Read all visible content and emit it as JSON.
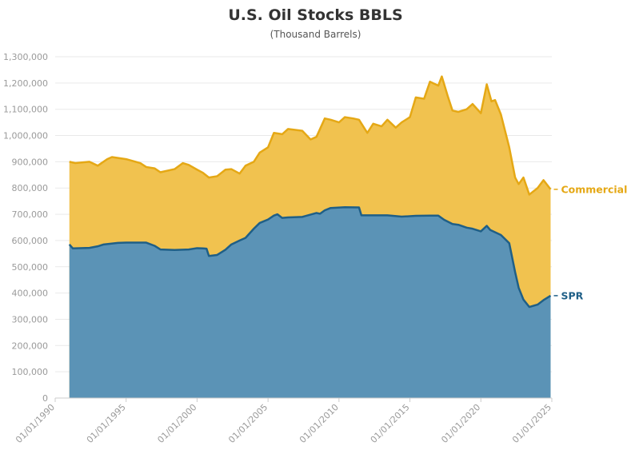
{
  "colors": {
    "commercial_fill": "#f1c24f",
    "commercial_line": "#e5a815",
    "spr_fill": "#5b93b6",
    "spr_line": "#1f5f87",
    "grid": "#e9e9e9",
    "tick_text": "#9a9a9a",
    "title_text": "#333333"
  },
  "chart_data": {
    "type": "area",
    "title": "U.S. Oil Stocks BBLS",
    "subtitle": "(Thousand Barrels)",
    "xlabel": "",
    "ylabel": "",
    "stacked": true,
    "ylim": [
      0,
      1300000
    ],
    "y_ticks": [
      "0",
      "100,000",
      "200,000",
      "300,000",
      "400,000",
      "500,000",
      "600,000",
      "700,000",
      "800,000",
      "900,000",
      "1,000,000",
      "1,100,000",
      "1,200,000",
      "1,300,000"
    ],
    "x_ticks": [
      "01/01/1990",
      "01/01/1995",
      "01/01/2000",
      "01/01/2005",
      "01/01/2010",
      "01/01/2015",
      "01/01/2020",
      "01/01/2025"
    ],
    "x_range": [
      "1990-01-01",
      "2025-01-01"
    ],
    "grid": true,
    "legend": "right-end labels",
    "series": [
      {
        "name": "SPR",
        "color": "#5b93b6",
        "points": [
          [
            "1991-01-01",
            585000
          ],
          [
            "1991-04-01",
            570000
          ],
          [
            "1992-06-01",
            572000
          ],
          [
            "1993-01-01",
            578000
          ],
          [
            "1993-06-01",
            585000
          ],
          [
            "1994-06-01",
            591000
          ],
          [
            "1995-01-01",
            592000
          ],
          [
            "1996-06-01",
            592000
          ],
          [
            "1997-01-01",
            580000
          ],
          [
            "1997-06-01",
            566000
          ],
          [
            "1998-06-01",
            564000
          ],
          [
            "1999-06-01",
            566000
          ],
          [
            "2000-01-01",
            571000
          ],
          [
            "2000-06-01",
            570000
          ],
          [
            "2000-09-01",
            569000
          ],
          [
            "2000-11-01",
            541000
          ],
          [
            "2001-06-01",
            545000
          ],
          [
            "2002-01-01",
            565000
          ],
          [
            "2002-06-01",
            585000
          ],
          [
            "2003-01-01",
            600000
          ],
          [
            "2003-06-01",
            610000
          ],
          [
            "2004-01-01",
            645000
          ],
          [
            "2004-06-01",
            667000
          ],
          [
            "2005-01-01",
            680000
          ],
          [
            "2005-06-01",
            695000
          ],
          [
            "2005-09-01",
            700000
          ],
          [
            "2006-01-01",
            686000
          ],
          [
            "2006-06-01",
            688000
          ],
          [
            "2007-06-01",
            690000
          ],
          [
            "2008-06-01",
            705000
          ],
          [
            "2008-09-01",
            702000
          ],
          [
            "2009-01-01",
            715000
          ],
          [
            "2009-06-01",
            724000
          ],
          [
            "2010-06-01",
            727000
          ],
          [
            "2011-06-01",
            726000
          ],
          [
            "2011-08-01",
            696000
          ],
          [
            "2012-06-01",
            696000
          ],
          [
            "2013-06-01",
            696000
          ],
          [
            "2014-06-01",
            691000
          ],
          [
            "2015-06-01",
            694000
          ],
          [
            "2016-06-01",
            695000
          ],
          [
            "2017-01-01",
            695000
          ],
          [
            "2017-06-01",
            679000
          ],
          [
            "2018-01-01",
            663000
          ],
          [
            "2018-06-01",
            660000
          ],
          [
            "2019-01-01",
            649000
          ],
          [
            "2019-06-01",
            645000
          ],
          [
            "2020-01-01",
            635000
          ],
          [
            "2020-06-01",
            656000
          ],
          [
            "2020-09-01",
            640000
          ],
          [
            "2021-06-01",
            621000
          ],
          [
            "2022-01-01",
            590000
          ],
          [
            "2022-06-01",
            480000
          ],
          [
            "2022-09-01",
            420000
          ],
          [
            "2023-01-01",
            375000
          ],
          [
            "2023-06-01",
            347000
          ],
          [
            "2024-01-01",
            356000
          ],
          [
            "2024-06-01",
            373000
          ],
          [
            "2024-12-01",
            390000
          ]
        ]
      },
      {
        "name": "Commercial",
        "color": "#f1c24f",
        "points": [
          [
            "1991-01-01",
            900000
          ],
          [
            "1991-06-01",
            895000
          ],
          [
            "1992-06-01",
            900000
          ],
          [
            "1993-01-01",
            885000
          ],
          [
            "1993-09-01",
            910000
          ],
          [
            "1994-01-01",
            918000
          ],
          [
            "1995-01-01",
            910000
          ],
          [
            "1996-01-01",
            895000
          ],
          [
            "1996-06-01",
            880000
          ],
          [
            "1997-01-01",
            875000
          ],
          [
            "1997-06-01",
            860000
          ],
          [
            "1998-06-01",
            872000
          ],
          [
            "1999-01-01",
            895000
          ],
          [
            "1999-06-01",
            888000
          ],
          [
            "2000-01-01",
            870000
          ],
          [
            "2000-06-01",
            858000
          ],
          [
            "2000-11-01",
            840000
          ],
          [
            "2001-06-01",
            845000
          ],
          [
            "2002-01-01",
            870000
          ],
          [
            "2002-06-01",
            872000
          ],
          [
            "2003-01-01",
            855000
          ],
          [
            "2003-06-01",
            885000
          ],
          [
            "2004-01-01",
            900000
          ],
          [
            "2004-06-01",
            935000
          ],
          [
            "2005-01-01",
            955000
          ],
          [
            "2005-06-01",
            1010000
          ],
          [
            "2006-01-01",
            1005000
          ],
          [
            "2006-06-01",
            1025000
          ],
          [
            "2007-06-01",
            1018000
          ],
          [
            "2008-01-01",
            985000
          ],
          [
            "2008-06-01",
            995000
          ],
          [
            "2009-01-01",
            1065000
          ],
          [
            "2009-06-01",
            1060000
          ],
          [
            "2010-01-01",
            1050000
          ],
          [
            "2010-06-01",
            1070000
          ],
          [
            "2011-01-01",
            1065000
          ],
          [
            "2011-06-01",
            1060000
          ],
          [
            "2012-01-01",
            1010000
          ],
          [
            "2012-06-01",
            1045000
          ],
          [
            "2013-01-01",
            1035000
          ],
          [
            "2013-06-01",
            1060000
          ],
          [
            "2014-01-01",
            1030000
          ],
          [
            "2014-06-01",
            1050000
          ],
          [
            "2015-01-01",
            1070000
          ],
          [
            "2015-06-01",
            1145000
          ],
          [
            "2016-01-01",
            1140000
          ],
          [
            "2016-06-01",
            1205000
          ],
          [
            "2017-01-01",
            1190000
          ],
          [
            "2017-04-01",
            1225000
          ],
          [
            "2017-09-01",
            1150000
          ],
          [
            "2018-01-01",
            1095000
          ],
          [
            "2018-06-01",
            1090000
          ],
          [
            "2019-01-01",
            1100000
          ],
          [
            "2019-06-01",
            1120000
          ],
          [
            "2020-01-01",
            1085000
          ],
          [
            "2020-06-01",
            1195000
          ],
          [
            "2020-10-01",
            1130000
          ],
          [
            "2021-01-01",
            1135000
          ],
          [
            "2021-06-01",
            1080000
          ],
          [
            "2022-01-01",
            955000
          ],
          [
            "2022-06-01",
            840000
          ],
          [
            "2022-09-01",
            815000
          ],
          [
            "2023-01-01",
            840000
          ],
          [
            "2023-06-01",
            775000
          ],
          [
            "2024-01-01",
            800000
          ],
          [
            "2024-06-01",
            830000
          ],
          [
            "2024-12-01",
            795000
          ]
        ]
      }
    ]
  }
}
